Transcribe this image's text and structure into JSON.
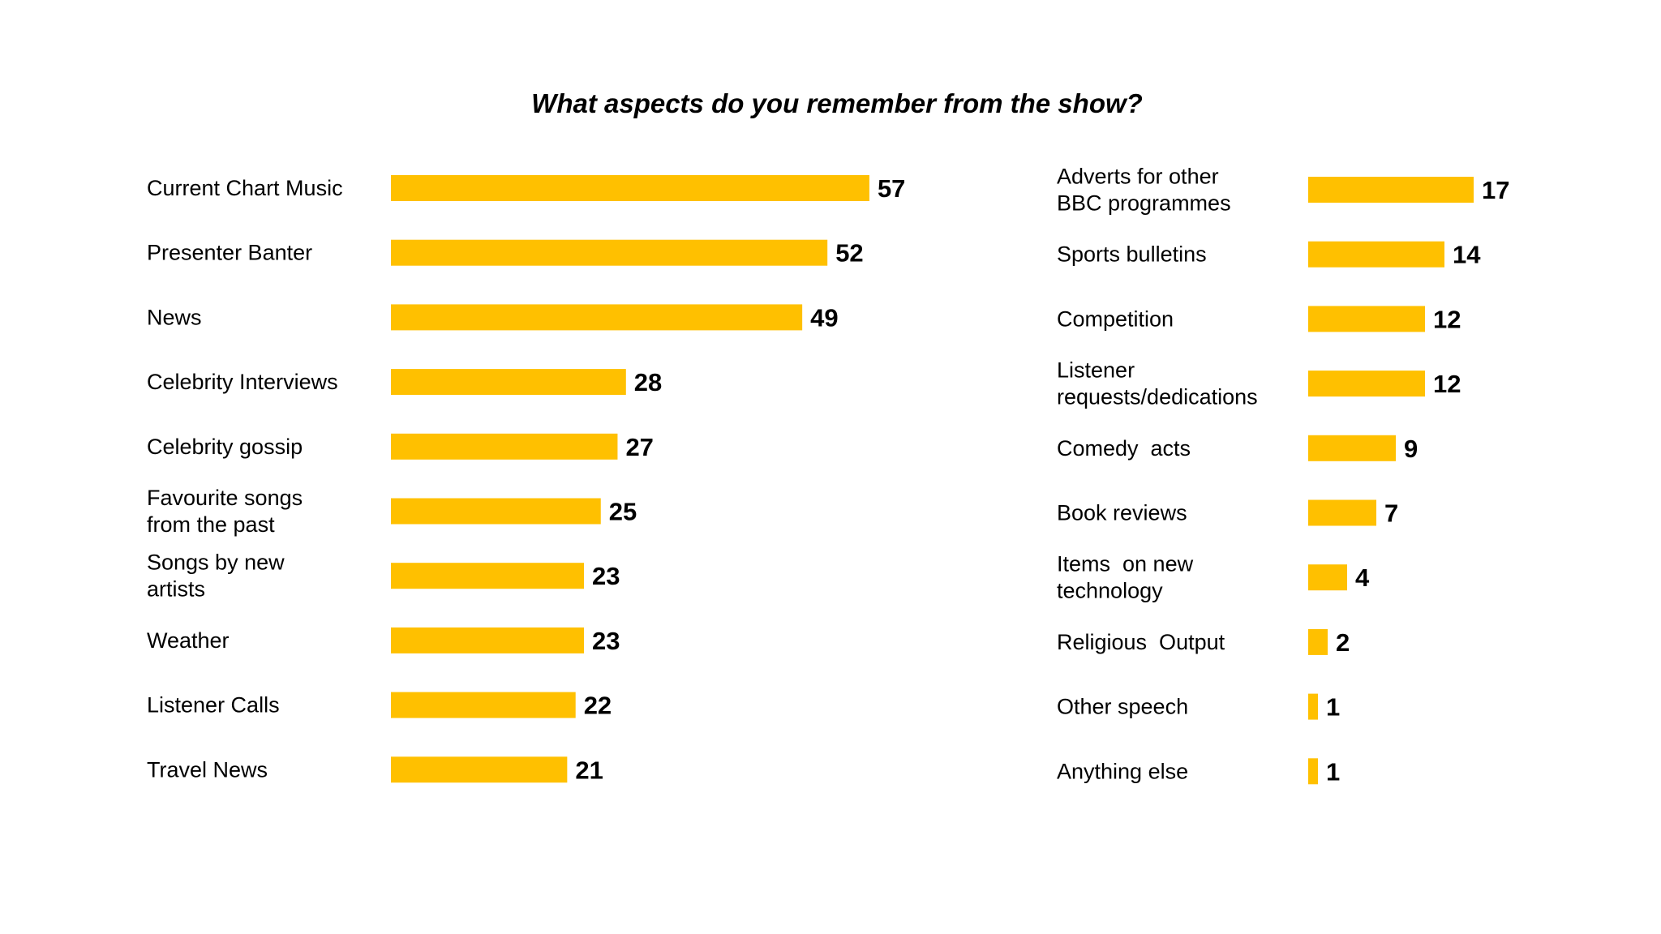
{
  "chart_data": {
    "type": "bar",
    "orientation": "horizontal",
    "title": "What aspects  do you remember from the show?",
    "bar_color": "#FFC000",
    "panels": [
      {
        "categories": [
          [
            "Current Chart Music"
          ],
          [
            "Presenter Banter"
          ],
          [
            "News"
          ],
          [
            "Celebrity Interviews"
          ],
          [
            "Celebrity gossip"
          ],
          [
            "Favourite songs",
            "from the past"
          ],
          [
            "Songs by new",
            "artists"
          ],
          [
            "Weather"
          ],
          [
            "Listener Calls"
          ],
          [
            "Travel News"
          ]
        ],
        "values": [
          57,
          52,
          49,
          28,
          27,
          25,
          23,
          23,
          22,
          21
        ]
      },
      {
        "categories": [
          [
            "Adverts for other",
            "BBC programmes"
          ],
          [
            "Sports bulletins"
          ],
          [
            "Competition"
          ],
          [
            "Listener",
            "requests/dedications"
          ],
          [
            "Comedy  acts"
          ],
          [
            "Book reviews"
          ],
          [
            "Items  on new",
            "technology"
          ],
          [
            "Religious  Output"
          ],
          [
            "Other speech"
          ],
          [
            "Anything else"
          ]
        ],
        "values": [
          17,
          14,
          12,
          12,
          9,
          7,
          4,
          2,
          1,
          1
        ]
      }
    ]
  }
}
